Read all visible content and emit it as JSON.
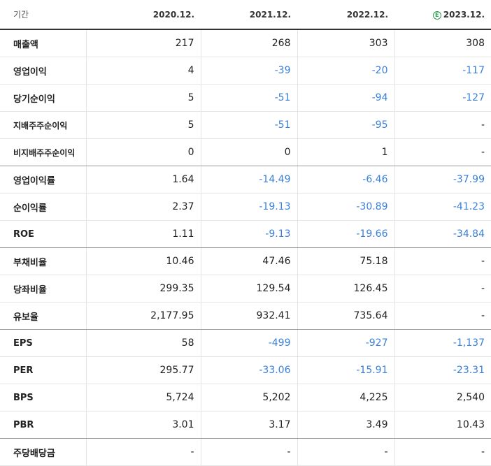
{
  "header": {
    "label": "기간",
    "periods": [
      "2020.12.",
      "2021.12.",
      "2022.12.",
      "2023.12."
    ],
    "estimate_badge": "E"
  },
  "rows": [
    {
      "label": "매출액",
      "values": [
        "217",
        "268",
        "303",
        "308"
      ]
    },
    {
      "label": "영업이익",
      "values": [
        "4",
        "-39",
        "-20",
        "-117"
      ]
    },
    {
      "label": "당기순이익",
      "values": [
        "5",
        "-51",
        "-94",
        "-127"
      ]
    },
    {
      "label": "지배주주순이익",
      "values": [
        "5",
        "-51",
        "-95",
        "-"
      ]
    },
    {
      "label": "비지배주주순이익",
      "values": [
        "0",
        "0",
        "1",
        "-"
      ]
    },
    {
      "label": "영업이익률",
      "values": [
        "1.64",
        "-14.49",
        "-6.46",
        "-37.99"
      ]
    },
    {
      "label": "순이익률",
      "values": [
        "2.37",
        "-19.13",
        "-30.89",
        "-41.23"
      ]
    },
    {
      "label": "ROE",
      "values": [
        "1.11",
        "-9.13",
        "-19.66",
        "-34.84"
      ]
    },
    {
      "label": "부채비율",
      "values": [
        "10.46",
        "47.46",
        "75.18",
        "-"
      ]
    },
    {
      "label": "당좌비율",
      "values": [
        "299.35",
        "129.54",
        "126.45",
        "-"
      ]
    },
    {
      "label": "유보율",
      "values": [
        "2,177.95",
        "932.41",
        "735.64",
        "-"
      ]
    },
    {
      "label": "EPS",
      "values": [
        "58",
        "-499",
        "-927",
        "-1,137"
      ]
    },
    {
      "label": "PER",
      "values": [
        "295.77",
        "-33.06",
        "-15.91",
        "-23.31"
      ]
    },
    {
      "label": "BPS",
      "values": [
        "5,724",
        "5,202",
        "4,225",
        "2,540"
      ]
    },
    {
      "label": "PBR",
      "values": [
        "3.01",
        "3.17",
        "3.49",
        "10.43"
      ]
    },
    {
      "label": "주당배당금",
      "values": [
        "-",
        "-",
        "-",
        "-"
      ]
    }
  ],
  "colors": {
    "negative": "#3a7fd9",
    "estimate_badge": "#2e9a4e"
  }
}
